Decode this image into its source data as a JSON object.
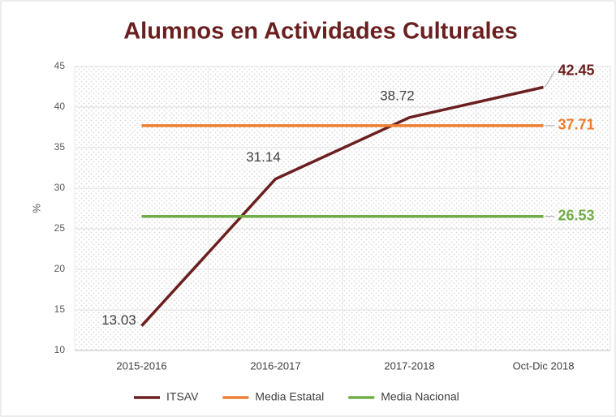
{
  "chart_data": {
    "type": "line",
    "title": "Alumnos en Actividades Culturales",
    "y_label": "%",
    "categories": [
      "2015-2016",
      "2016-2017",
      "2017-2018",
      "Oct-Dic 2018"
    ],
    "series": [
      {
        "name": "ITSAV",
        "color": "#6b1f1f",
        "values": [
          13.03,
          31.14,
          38.72,
          42.45
        ],
        "data_labels": "all"
      },
      {
        "name": "Media Estatal",
        "color": "#ed7d31",
        "values": [
          37.71,
          37.71,
          37.71,
          37.71
        ],
        "data_labels": "last"
      },
      {
        "name": "Media Nacional",
        "color": "#70ad47",
        "values": [
          26.53,
          26.53,
          26.53,
          26.53
        ],
        "data_labels": "last"
      }
    ],
    "ylim": [
      10,
      45
    ],
    "yticks": [
      10,
      15,
      20,
      25,
      30,
      35,
      40,
      45
    ],
    "grid": true,
    "legend": "bottom"
  }
}
